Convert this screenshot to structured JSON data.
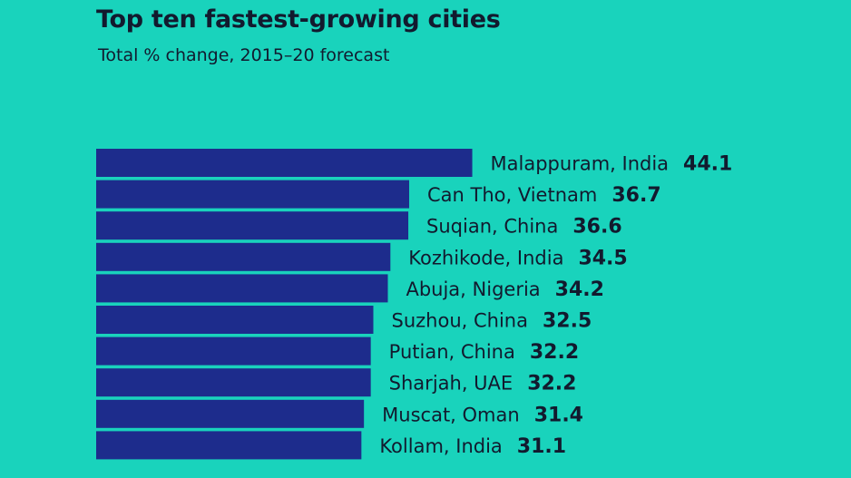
{
  "colors": {
    "background": "#19D3BC",
    "bar": "#1D2C8C",
    "text": "#121a2e"
  },
  "header": {
    "title": "Top ten fastest-growing cities",
    "subtitle": "Total % change, 2015–20 forecast"
  },
  "chart_data": {
    "type": "bar",
    "orientation": "horizontal",
    "title": "Top ten fastest-growing cities",
    "subtitle": "Total % change, 2015–20 forecast",
    "xlabel": "",
    "ylabel": "",
    "grid": false,
    "categories": [
      "Malappuram, India",
      "Can Tho, Vietnam",
      "Suqian, China",
      "Kozhikode, India",
      "Abuja, Nigeria",
      "Suzhou, China",
      "Putian, China",
      "Sharjah, UAE",
      "Muscat, Oman",
      "Kollam, India"
    ],
    "values": [
      44.1,
      36.7,
      36.6,
      34.5,
      34.2,
      32.5,
      32.2,
      32.2,
      31.4,
      31.1
    ],
    "value_labels": [
      "44.1",
      "36.7",
      "36.6",
      "34.5",
      "34.2",
      "32.5",
      "32.2",
      "32.2",
      "31.4",
      "31.1"
    ]
  }
}
